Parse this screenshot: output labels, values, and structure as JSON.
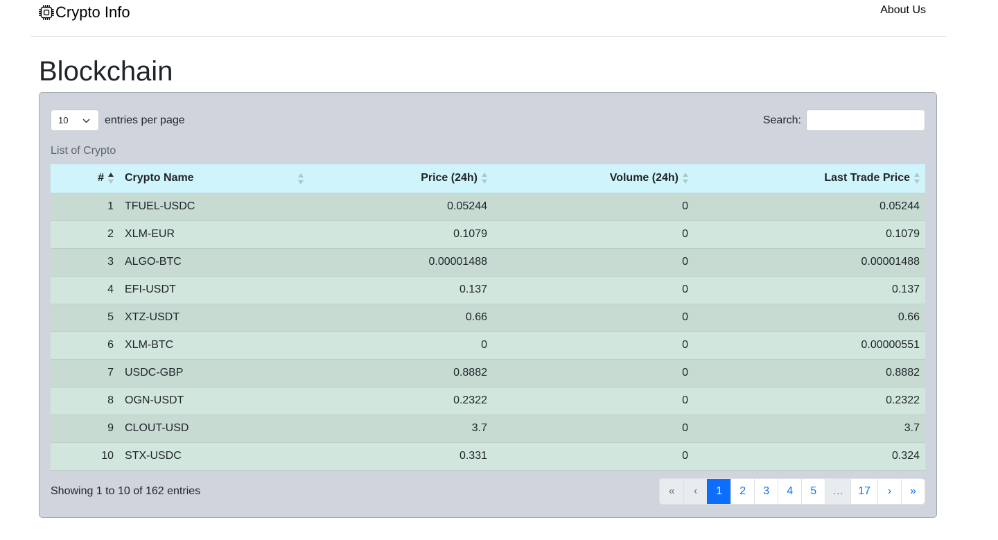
{
  "navbar": {
    "brand_icon": "cpu-icon",
    "brand": "Crypto Info",
    "about_link": "About Us"
  },
  "page_title": "Blockchain",
  "length_menu": {
    "selected": "10",
    "label": "entries per page"
  },
  "search": {
    "label": "Search:",
    "value": ""
  },
  "caption": "List of Crypto",
  "table": {
    "headers": [
      "#",
      "Crypto Name",
      "Price (24h)",
      "Volume (24h)",
      "Last Trade Price"
    ],
    "sorted_column": "#",
    "rows": [
      [
        "1",
        "TFUEL-USDC",
        "0.05244",
        "0",
        "0.05244"
      ],
      [
        "2",
        "XLM-EUR",
        "0.1079",
        "0",
        "0.1079"
      ],
      [
        "3",
        "ALGO-BTC",
        "0.00001488",
        "0",
        "0.00001488"
      ],
      [
        "4",
        "EFI-USDT",
        "0.137",
        "0",
        "0.137"
      ],
      [
        "5",
        "XTZ-USDT",
        "0.66",
        "0",
        "0.66"
      ],
      [
        "6",
        "XLM-BTC",
        "0",
        "0",
        "0.00000551"
      ],
      [
        "7",
        "USDC-GBP",
        "0.8882",
        "0",
        "0.8882"
      ],
      [
        "8",
        "OGN-USDT",
        "0.2322",
        "0",
        "0.2322"
      ],
      [
        "9",
        "CLOUT-USD",
        "3.7",
        "0",
        "3.7"
      ],
      [
        "10",
        "STX-USDC",
        "0.331",
        "0",
        "0.324"
      ]
    ]
  },
  "info": "Showing 1 to 10 of 162 entries",
  "pagination": {
    "first": "«",
    "prev": "‹",
    "pages": [
      "1",
      "2",
      "3",
      "4",
      "5"
    ],
    "ellipsis": "…",
    "last_page": "17",
    "next": "›",
    "last": "»",
    "active_page": "1"
  },
  "colors": {
    "panel_bg": "#d0d5dd",
    "header_bg": "#cff4fc",
    "row_odd": "#c7dbd3",
    "row_even": "#d1e7de",
    "accent": "#0d6efd"
  }
}
